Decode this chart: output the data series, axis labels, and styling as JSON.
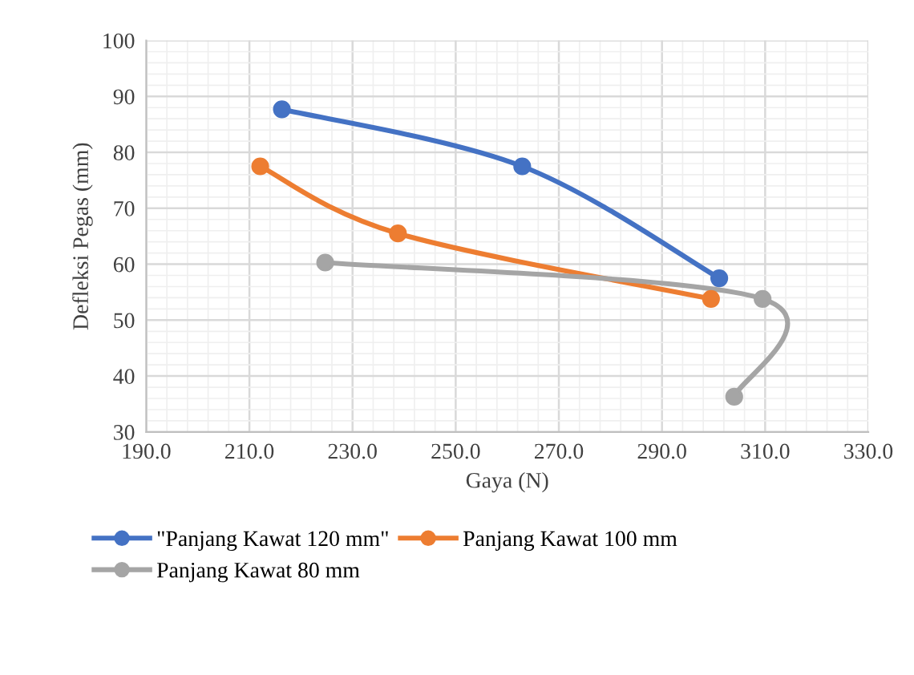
{
  "chart_data": {
    "type": "line",
    "xlabel": "Gaya (N)",
    "ylabel": "Defleksi Pegas (mm)",
    "series": [
      {
        "name": "\"Panjang Kawat 120 mm\"",
        "color": "#4472c4",
        "x": [
          216.3,
          262.9,
          301.1
        ],
        "values": [
          87.7,
          77.5,
          57.5
        ]
      },
      {
        "name": "Panjang Kawat 100 mm",
        "color": "#ed7d31",
        "x": [
          212.1,
          238.8,
          299.5
        ],
        "values": [
          77.5,
          65.5,
          53.8
        ]
      },
      {
        "name": "Panjang Kawat 80 mm",
        "color": "#a5a5a5",
        "x": [
          224.7,
          309.5,
          304.0
        ],
        "values": [
          60.3,
          53.8,
          36.3
        ]
      }
    ],
    "xlim": [
      190,
      330
    ],
    "ylim": [
      30,
      100
    ],
    "xticks": [
      {
        "value": 190,
        "label": "190.0"
      },
      {
        "value": 210,
        "label": "210.0"
      },
      {
        "value": 230,
        "label": "230.0"
      },
      {
        "value": 250,
        "label": "250.0"
      },
      {
        "value": 270,
        "label": "270.0"
      },
      {
        "value": 290,
        "label": "290.0"
      },
      {
        "value": 310,
        "label": "310.0"
      },
      {
        "value": 330,
        "label": "330.0"
      }
    ],
    "yticks": [
      30,
      40,
      50,
      60,
      70,
      80,
      90,
      100
    ],
    "grid": true,
    "legend": "bottom",
    "marker": "circle",
    "line_style": "solid"
  }
}
